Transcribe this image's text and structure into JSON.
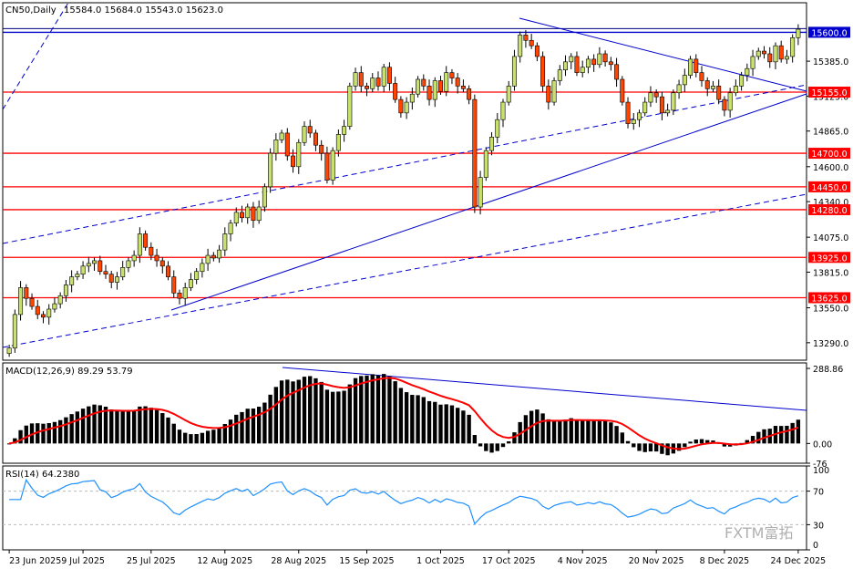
{
  "header": {
    "symbol": "CN50,Daily",
    "ohlc": "15584.0 15684.0 15543.0 15623.0"
  },
  "watermark": "FXTM富拓",
  "chart_data": {
    "type": "candlestick",
    "price_axis": {
      "ylim": [
        13160,
        15820
      ],
      "ticks": [
        13290.0,
        13550.0,
        13815.0,
        14075.0,
        14340.0,
        14600.0,
        14865.0,
        15125.0,
        15385.0
      ]
    },
    "date_labels": [
      "23 Jun 2025",
      "9 Jul 2025",
      "25 Jul 2025",
      "12 Aug 2025",
      "28 Aug 2025",
      "15 Sep 2025",
      "1 Oct 2025",
      "17 Oct 2025",
      "4 Nov 2025",
      "20 Nov 2025",
      "8 Dec 2025",
      "24 Dec 2025"
    ],
    "horizontal_levels": [
      {
        "value": 15600.0,
        "label": "15600.0",
        "color": "#0000cc"
      },
      {
        "value": 15155.0,
        "label": "15155.0",
        "color": "#ff0000"
      },
      {
        "value": 14700.0,
        "label": "14700.0",
        "color": "#ff0000"
      },
      {
        "value": 14450.0,
        "label": "14450.0",
        "color": "#ff0000"
      },
      {
        "value": 14280.0,
        "label": "14280.0",
        "color": "#ff0000"
      },
      {
        "value": 13925.0,
        "label": "13925.0",
        "color": "#ff0000"
      },
      {
        "value": 13625.0,
        "label": "13625.0",
        "color": "#ff0000"
      }
    ],
    "current_price": 15623.0,
    "closes": [
      13250,
      13500,
      13700,
      13620,
      13560,
      13500,
      13480,
      13540,
      13580,
      13640,
      13720,
      13780,
      13800,
      13860,
      13880,
      13900,
      13820,
      13800,
      13740,
      13780,
      13850,
      13900,
      13940,
      14100,
      14000,
      13940,
      13900,
      13860,
      13780,
      13660,
      13620,
      13700,
      13760,
      13820,
      13880,
      13940,
      13920,
      13980,
      14100,
      14180,
      14260,
      14220,
      14300,
      14200,
      14300,
      14450,
      14700,
      14800,
      14850,
      14680,
      14600,
      14780,
      14900,
      14850,
      14760,
      14700,
      14500,
      14720,
      14840,
      14900,
      15200,
      15300,
      15200,
      15180,
      15260,
      15200,
      15340,
      15220,
      15100,
      15000,
      15080,
      15140,
      15250,
      15200,
      15100,
      15240,
      15160,
      15300,
      15260,
      15200,
      15180,
      15100,
      14300,
      14520,
      14720,
      14820,
      14950,
      15080,
      15200,
      15420,
      15580,
      15540,
      15500,
      15420,
      15200,
      15080,
      15240,
      15320,
      15380,
      15420,
      15300,
      15340,
      15400,
      15360,
      15440,
      15380,
      15360,
      15250,
      15080,
      14920,
      14950,
      15000,
      15080,
      15150,
      15120,
      15000,
      15020,
      15150,
      15210,
      15280,
      15400,
      15300,
      15240,
      15180,
      15200,
      15100,
      15020,
      15150,
      15200,
      15280,
      15330,
      15420,
      15460,
      15440,
      15380,
      15500,
      15400,
      15420,
      15560,
      15623
    ],
    "macd": {
      "label": "MACD(12,26,9) 89.29 53.79",
      "ticks": [
        288.86,
        0.0,
        -76
      ],
      "ylim": [
        -76,
        310
      ]
    },
    "rsi": {
      "label": "RSI(14) 64.2380",
      "ticks": [
        100,
        70,
        30,
        0
      ],
      "ylim": [
        0,
        100
      ]
    }
  }
}
